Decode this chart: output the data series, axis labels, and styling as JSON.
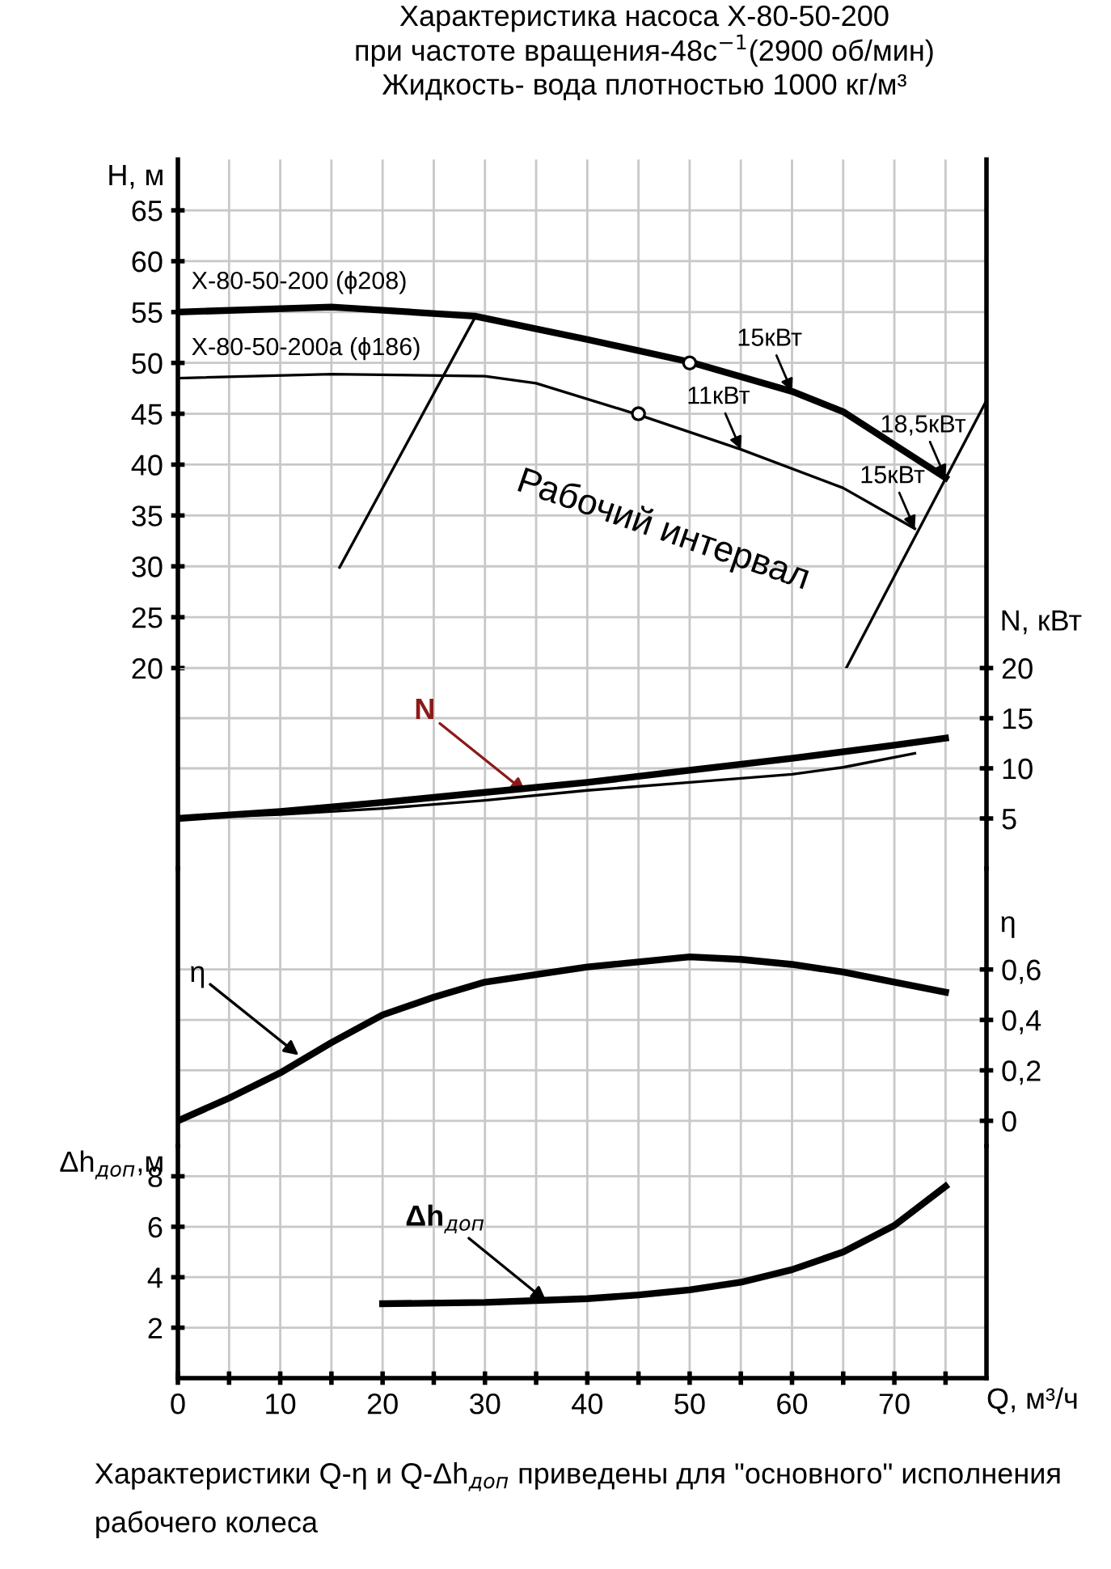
{
  "chart_data": [
    {
      "type": "line",
      "title": "Характеристика насоса Х-80-50-200",
      "subtitle": "при частоте вращения-48с$^{−1}$(2900 об/мин)\nЖидкость- вода плотностью 1000 кг/м³",
      "ylabel": "H, м",
      "xlim": [
        0,
        79
      ],
      "xticks": [
        0,
        {
          "value": 5,
          "label": null
        },
        10,
        {
          "value": 15,
          "label": null
        },
        20,
        {
          "value": 25,
          "label": null
        },
        30,
        {
          "value": 35,
          "label": null
        },
        40,
        {
          "value": 45,
          "label": null
        },
        50,
        {
          "value": 55,
          "label": null
        },
        60,
        {
          "value": 65,
          "label": null
        },
        70,
        {
          "value": 75,
          "label": null
        }
      ],
      "ylim": [
        20,
        70
      ],
      "yticks": [
        20,
        25,
        30,
        35,
        40,
        45,
        50,
        55,
        60,
        65
      ],
      "tick_labels": "y",
      "grid": true,
      "line_style": "solid",
      "series": [
        {
          "name": "Х-80-50-200 (ϕ208)",
          "color": "#000000",
          "x": [
            0,
            15,
            29,
            40,
            50,
            60,
            65,
            75
          ],
          "values": [
            55,
            55.5,
            54.6,
            52.3,
            50.1,
            47.2,
            45.2,
            38.7
          ]
        },
        {
          "name": "Х-80-50-200а (ϕ186)",
          "color": "#000000",
          "x": [
            0,
            15,
            30,
            35,
            45,
            55,
            65,
            72
          ],
          "values": [
            48.5,
            48.9,
            48.7,
            48.0,
            44.9,
            41.5,
            37.7,
            33.7
          ]
        },
        {
          "type": "scatter",
          "marker": "circle",
          "color": "#000000",
          "x": [
            50,
            45
          ],
          "values": [
            50,
            45
          ]
        },
        {
          "color": "#000000",
          "x": [
            15.8,
            29.1
          ],
          "values": [
            29.9,
            54.6
          ]
        },
        {
          "color": "#000000",
          "x": [
            65.3,
            79
          ],
          "values": [
            20,
            46.3
          ]
        }
      ],
      "annotations": [
        {
          "text": "15кВт",
          "x": 60,
          "y": 47.2
        },
        {
          "text": "11кВт",
          "x": 55,
          "y": 41.5
        },
        {
          "text": "18,5кВт",
          "x": 75,
          "y": 38.7
        },
        {
          "text": "15кВт",
          "x": 72,
          "y": 33.7
        },
        "Рабочий интервал"
      ]
    },
    {
      "type": "line",
      "ylabel": "N, кВт",
      "xlim": [
        0,
        79
      ],
      "xticks": [
        0,
        5,
        10,
        15,
        20,
        25,
        30,
        35,
        40,
        45,
        50,
        55,
        60,
        65,
        70,
        75
      ],
      "ylim": [
        0,
        20
      ],
      "yticks": [
        5,
        10,
        15,
        20
      ],
      "tick_labels": "y",
      "grid": true,
      "line_style": "solid",
      "series": [
        {
          "color": "#000000",
          "x": [
            0,
            10,
            20,
            30,
            40,
            50,
            60,
            70,
            75
          ],
          "values": [
            5.0,
            5.7,
            6.6,
            7.6,
            8.6,
            9.8,
            11.0,
            12.3,
            13.0
          ]
        },
        {
          "color": "#000000",
          "x": [
            0,
            10,
            20,
            30,
            40,
            50,
            60,
            65,
            72
          ],
          "values": [
            5.0,
            5.4,
            6.0,
            6.8,
            7.8,
            8.6,
            9.4,
            10.1,
            11.5
          ]
        }
      ],
      "annotations": [
        {
          "text": "N",
          "x": 34,
          "y": 7.6
        }
      ]
    },
    {
      "type": "line",
      "ylabel": "η",
      "xlim": [
        0,
        79
      ],
      "xticks": [
        0,
        5,
        10,
        15,
        20,
        25,
        30,
        35,
        40,
        45,
        50,
        55,
        60,
        65,
        70,
        75
      ],
      "ylim": [
        -0.1,
        1.0
      ],
      "yticks": [
        {
          "value": 0,
          "label": "0"
        },
        {
          "value": 0.2,
          "label": "0,2"
        },
        {
          "value": 0.4,
          "label": "0,4"
        },
        {
          "value": 0.6,
          "label": "0,6"
        }
      ],
      "tick_labels": "y",
      "grid": true,
      "line_style": "solid",
      "series": [
        {
          "color": "#000000",
          "x": [
            0,
            5,
            10,
            15,
            20,
            25,
            30,
            40,
            50,
            55,
            60,
            65,
            70,
            75
          ],
          "values": [
            0,
            0.09,
            0.19,
            0.31,
            0.42,
            0.49,
            0.55,
            0.61,
            0.65,
            0.64,
            0.62,
            0.59,
            0.55,
            0.51
          ]
        }
      ],
      "annotations": [
        {
          "text": "η",
          "x": 11.8,
          "y": 0.26
        }
      ]
    },
    {
      "type": "line",
      "ylabel": "Δh$_{доп}$,м",
      "xlabel": "Q, м³/ч",
      "xlim": [
        0,
        79
      ],
      "xticks": [
        0,
        {
          "value": 5,
          "label": null
        },
        10,
        {
          "value": 15,
          "label": null
        },
        20,
        {
          "value": 25,
          "label": null
        },
        30,
        {
          "value": 35,
          "label": null
        },
        40,
        {
          "value": 45,
          "label": null
        },
        50,
        {
          "value": 55,
          "label": null
        },
        60,
        {
          "value": 65,
          "label": null
        },
        70,
        {
          "value": 75,
          "label": null
        }
      ],
      "ylim": [
        0,
        9.2
      ],
      "yticks": [
        2,
        4,
        6,
        8
      ],
      "grid": true,
      "line_style": "solid",
      "series": [
        {
          "color": "#000000",
          "x": [
            20,
            30,
            40,
            45,
            50,
            55,
            60,
            65,
            70,
            75
          ],
          "values": [
            2.95,
            3.0,
            3.15,
            3.3,
            3.5,
            3.8,
            4.3,
            5.0,
            6.05,
            7.6
          ]
        }
      ],
      "annotations": [
        {
          "text": "Δh$_{доп}$",
          "x": 36,
          "y": 3.05
        },
        "Характеристики Q-η и Q-Δh$_{доп}$ приведены для \"основного\" исполнения рабочего колеса"
      ]
    }
  ]
}
